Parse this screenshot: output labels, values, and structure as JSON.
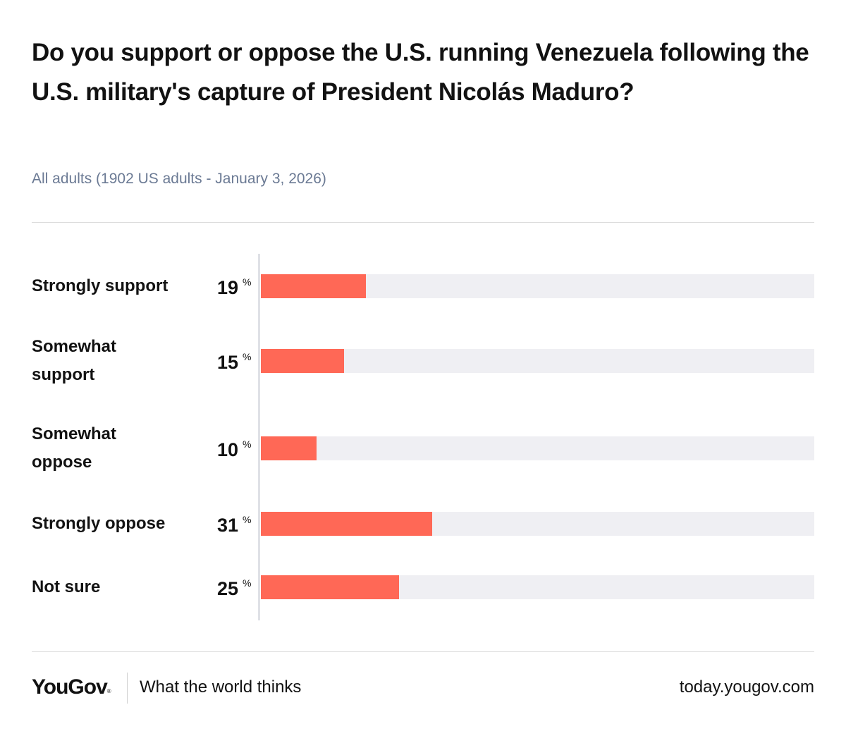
{
  "header": {
    "title": "Do you support or oppose the U.S. running Venezuela following the U.S. military's capture of President Nicolás Maduro?",
    "subtitle": "All adults (1902 US adults - January 3, 2026)"
  },
  "chart_data": {
    "type": "bar",
    "orientation": "horizontal",
    "title": "Do you support or oppose the U.S. running Venezuela following the U.S. military's capture of President Nicolás Maduro?",
    "subtitle": "All adults (1902 US adults - January 3, 2026)",
    "categories": [
      "Strongly support",
      "Somewhat support",
      "Somewhat oppose",
      "Strongly oppose",
      "Not sure"
    ],
    "values": [
      19,
      15,
      10,
      31,
      25
    ],
    "unit": "%",
    "xlim": [
      0,
      100
    ],
    "bar_color": "#ff6856",
    "track_color": "#efeff3"
  },
  "footer": {
    "logo": "YouGov",
    "logo_mark": "®",
    "tagline": "What the world thinks",
    "url": "today.yougov.com"
  }
}
